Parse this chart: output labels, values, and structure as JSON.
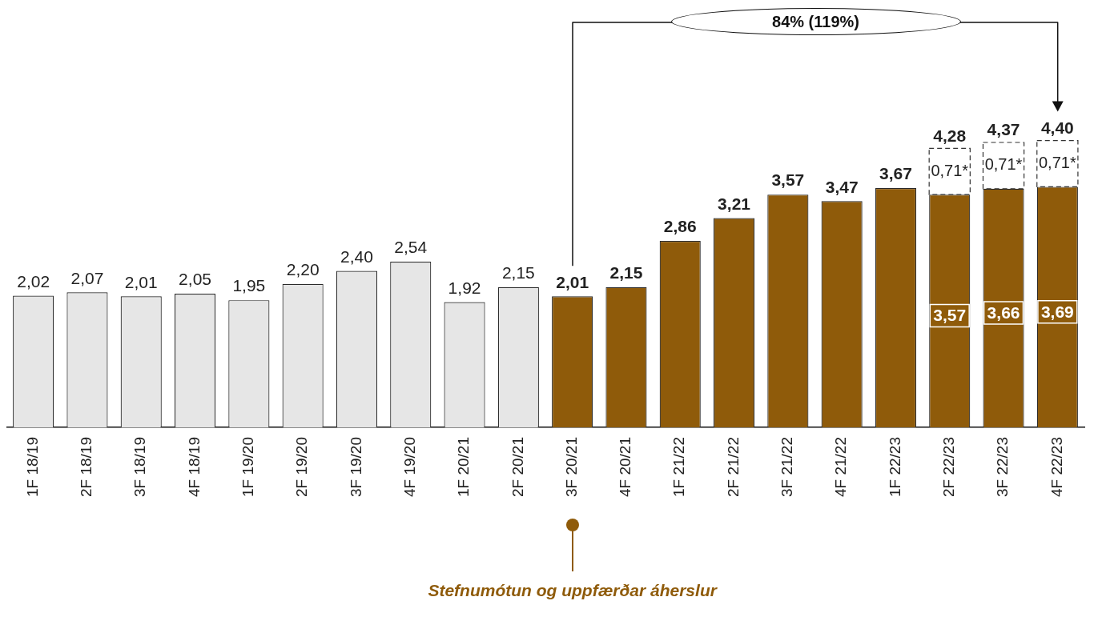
{
  "chart_data": {
    "type": "bar",
    "stacked": true,
    "legend": false,
    "grid": false,
    "tick_labels": "x",
    "categories": [
      "1F 18/19",
      "2F 18/19",
      "3F 18/19",
      "4F 18/19",
      "1F 19/20",
      "2F 19/20",
      "3F 19/20",
      "4F 19/20",
      "1F 20/21",
      "2F 20/21",
      "3F 20/21",
      "4F 20/21",
      "1F 21/22",
      "2F 21/22",
      "3F 21/22",
      "4F 21/22",
      "1F 22/23",
      "2F 22/23",
      "3F 22/23",
      "4F 22/23"
    ],
    "series": [
      {
        "colors": [
          "#e6e6e6",
          "#e6e6e6",
          "#e6e6e6",
          "#e6e6e6",
          "#e6e6e6",
          "#e6e6e6",
          "#e6e6e6",
          "#e6e6e6",
          "#e6e6e6",
          "#e6e6e6",
          "#8f5b0a",
          "#8f5b0a",
          "#8f5b0a",
          "#8f5b0a",
          "#8f5b0a",
          "#8f5b0a",
          "#8f5b0a",
          "#8f5b0a",
          "#8f5b0a",
          "#8f5b0a"
        ],
        "values": [
          2.02,
          2.07,
          2.01,
          2.05,
          1.95,
          2.2,
          2.4,
          2.54,
          1.92,
          2.15,
          2.01,
          2.15,
          2.86,
          3.21,
          3.57,
          3.47,
          3.67,
          3.57,
          3.66,
          3.69
        ],
        "value_labels": [
          "2,02",
          "2,07",
          "2,01",
          "2,05",
          "1,95",
          "2,20",
          "2,40",
          "2,54",
          "1,92",
          "2,15",
          "2,01",
          "2,15",
          "2,86",
          "3,21",
          "3,57",
          "3,47",
          "3,67",
          "3,57",
          "3,66",
          "3,69"
        ]
      },
      {
        "color": "#333333",
        "line_style": "dashed",
        "values": [
          null,
          null,
          null,
          null,
          null,
          null,
          null,
          null,
          null,
          null,
          null,
          null,
          null,
          null,
          null,
          null,
          null,
          0.71,
          0.71,
          0.71
        ],
        "value_labels": [
          null,
          null,
          null,
          null,
          null,
          null,
          null,
          null,
          null,
          null,
          null,
          null,
          null,
          null,
          null,
          null,
          null,
          "0,71*",
          "0,71*",
          "0,71*"
        ]
      }
    ],
    "totals": [
      null,
      null,
      null,
      null,
      null,
      null,
      null,
      null,
      null,
      null,
      null,
      null,
      null,
      null,
      null,
      null,
      null,
      "4,28",
      "4,37",
      "4,40"
    ],
    "annotations": [
      "84% (119%)",
      "Stefnumótun og uppfærðar áherslur"
    ]
  }
}
